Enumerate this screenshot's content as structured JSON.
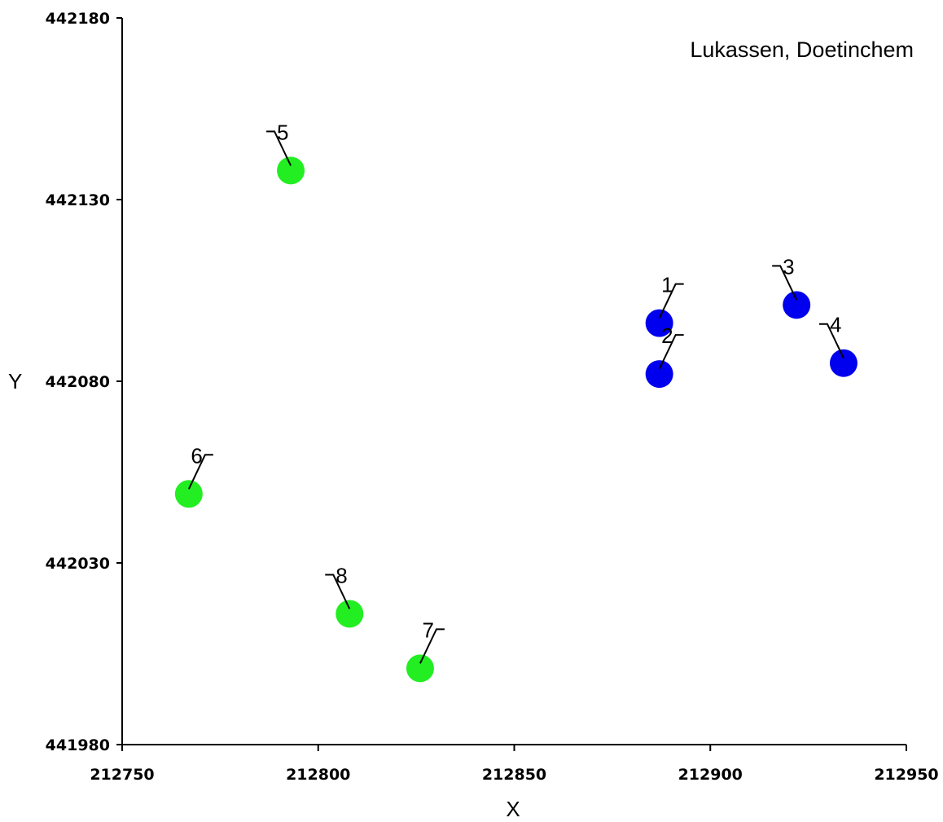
{
  "chart_data": {
    "type": "scatter",
    "title": "Lukassen, Doetinchem",
    "xlabel": "X",
    "ylabel": "Y",
    "xlim": [
      212750,
      212950
    ],
    "ylim": [
      441980,
      442180
    ],
    "xticks": [
      "212750",
      "212800",
      "212850",
      "212900",
      "212950"
    ],
    "yticks": [
      "442180",
      "442130",
      "442080",
      "442030",
      "441980"
    ],
    "grid": false,
    "points": [
      {
        "label": "1",
        "x": 212887,
        "y": 442096,
        "color": "#0000ee",
        "tag": "upper-right"
      },
      {
        "label": "2",
        "x": 212887,
        "y": 442082,
        "color": "#0000ee",
        "tag": "upper-right"
      },
      {
        "label": "3",
        "x": 212922,
        "y": 442101,
        "color": "#0000ee",
        "tag": "upper-left"
      },
      {
        "label": "4",
        "x": 212934,
        "y": 442085,
        "color": "#0000ee",
        "tag": "upper-left"
      },
      {
        "label": "5",
        "x": 212793,
        "y": 442138,
        "color": "#22ee22",
        "tag": "upper-left"
      },
      {
        "label": "6",
        "x": 212767,
        "y": 442049,
        "color": "#22ee22",
        "tag": "upper-right"
      },
      {
        "label": "7",
        "x": 212826,
        "y": 442001,
        "color": "#22ee22",
        "tag": "upper-right"
      },
      {
        "label": "8",
        "x": 212808,
        "y": 442016,
        "color": "#22ee22",
        "tag": "upper-left"
      }
    ]
  }
}
